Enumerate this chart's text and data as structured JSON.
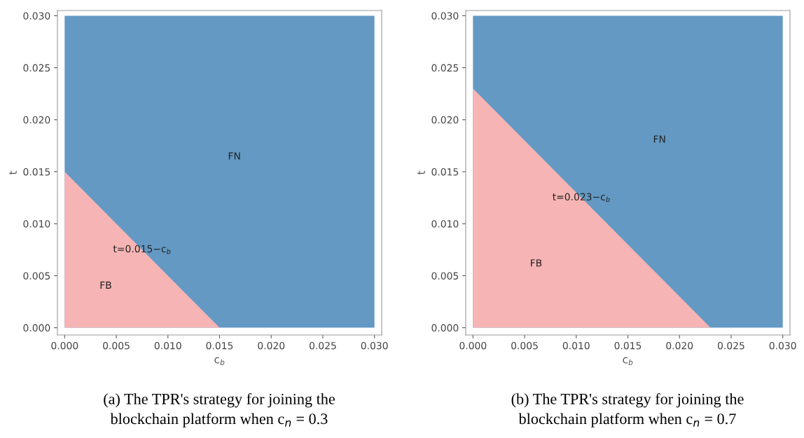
{
  "chart_data": [
    {
      "type": "area",
      "x": [
        0,
        0.015,
        0.03
      ],
      "xlabel": "c$_{b}$",
      "ylabel": "t",
      "series": [
        {
          "name": "FB",
          "color": "#f7b4b4",
          "values": [
            0.015,
            0,
            0
          ]
        }
      ],
      "bands": [
        {
          "axis": "y",
          "from": 0,
          "to": 0.03,
          "label": "FN",
          "color": "#6399c3"
        }
      ],
      "xlim": [
        -0.0007,
        0.0307
      ],
      "ylim": [
        -0.0007,
        0.0305
      ],
      "xticks": [
        {
          "value": 0,
          "label": "0.000"
        },
        {
          "value": 0.005,
          "label": "0.005"
        },
        {
          "value": 0.01,
          "label": "0.010"
        },
        {
          "value": 0.015,
          "label": "0.015"
        },
        {
          "value": 0.02,
          "label": "0.020"
        },
        {
          "value": 0.025,
          "label": "0.025"
        },
        {
          "value": 0.03,
          "label": "0.030"
        }
      ],
      "yticks": [
        {
          "value": 0,
          "label": "0.000"
        },
        {
          "value": 0.005,
          "label": "0.005"
        },
        {
          "value": 0.01,
          "label": "0.010"
        },
        {
          "value": 0.015,
          "label": "0.015"
        },
        {
          "value": 0.02,
          "label": "0.020"
        },
        {
          "value": 0.025,
          "label": "0.025"
        },
        {
          "value": 0.03,
          "label": "0.030"
        }
      ],
      "grid": false,
      "annotations": [
        {
          "text": "t=0.015−c$_{b}$",
          "x": 0.0075,
          "y": 0.0075
        },
        "(a) The TPR's strategy for joining the blockchain platform when c$_{n}$ = 0.3"
      ]
    },
    {
      "type": "area",
      "x": [
        0,
        0.023,
        0.03
      ],
      "xlabel": "c$_{b}$",
      "ylabel": "t",
      "series": [
        {
          "name": "FB",
          "color": "#f7b4b4",
          "values": [
            0.023,
            0,
            0
          ]
        }
      ],
      "bands": [
        {
          "axis": "y",
          "from": 0,
          "to": 0.03,
          "label": "FN",
          "color": "#6399c3"
        }
      ],
      "xlim": [
        -0.0007,
        0.0307
      ],
      "ylim": [
        -0.0007,
        0.0305
      ],
      "xticks": [
        {
          "value": 0,
          "label": "0.000"
        },
        {
          "value": 0.005,
          "label": "0.005"
        },
        {
          "value": 0.01,
          "label": "0.010"
        },
        {
          "value": 0.015,
          "label": "0.015"
        },
        {
          "value": 0.02,
          "label": "0.020"
        },
        {
          "value": 0.025,
          "label": "0.025"
        },
        {
          "value": 0.03,
          "label": "0.030"
        }
      ],
      "yticks": [
        {
          "value": 0,
          "label": "0.000"
        },
        {
          "value": 0.005,
          "label": "0.005"
        },
        {
          "value": 0.01,
          "label": "0.010"
        },
        {
          "value": 0.015,
          "label": "0.015"
        },
        {
          "value": 0.02,
          "label": "0.020"
        },
        {
          "value": 0.025,
          "label": "0.025"
        },
        {
          "value": 0.03,
          "label": "0.030"
        }
      ],
      "grid": false,
      "annotations": [
        {
          "text": "t=0.023−c$_{b}$",
          "x": 0.0105,
          "y": 0.0125
        },
        "(b) The TPR's strategy for joining the blockchain platform when c$_{n}$ = 0.7"
      ]
    }
  ]
}
